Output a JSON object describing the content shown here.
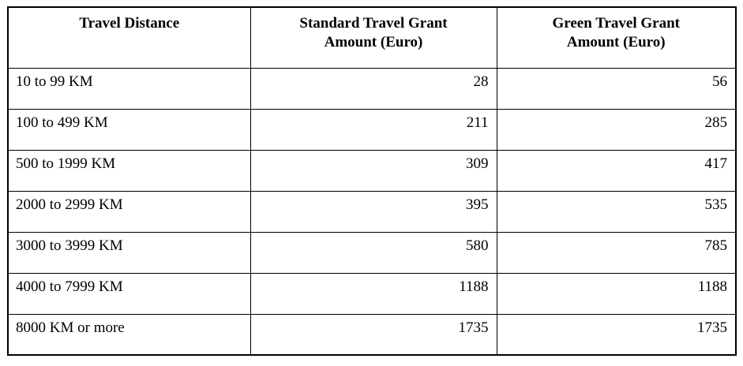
{
  "document": {
    "background_color": "#ffffff",
    "border_color": "#000000",
    "text_color": "#000000"
  },
  "table": {
    "headers": [
      {
        "lines": [
          "Travel Distance"
        ]
      },
      {
        "lines": [
          "Standard Travel Grant",
          "Amount (Euro)"
        ]
      },
      {
        "lines": [
          "Green Travel Grant",
          "Amount (Euro)"
        ]
      }
    ],
    "rows": [
      {
        "distance": "10 to 99 KM",
        "standard": "28",
        "green": "56"
      },
      {
        "distance": "100 to 499 KM",
        "standard": "211",
        "green": "285"
      },
      {
        "distance": "500 to 1999 KM",
        "standard": "309",
        "green": "417"
      },
      {
        "distance": "2000 to 2999 KM",
        "standard": "395",
        "green": "535"
      },
      {
        "distance": "3000 to 3999 KM",
        "standard": "580",
        "green": "785"
      },
      {
        "distance": "4000 to 7999 KM",
        "standard": "1188",
        "green": "1188"
      },
      {
        "distance": "8000 KM or more",
        "standard": "1735",
        "green": "1735"
      }
    ]
  }
}
